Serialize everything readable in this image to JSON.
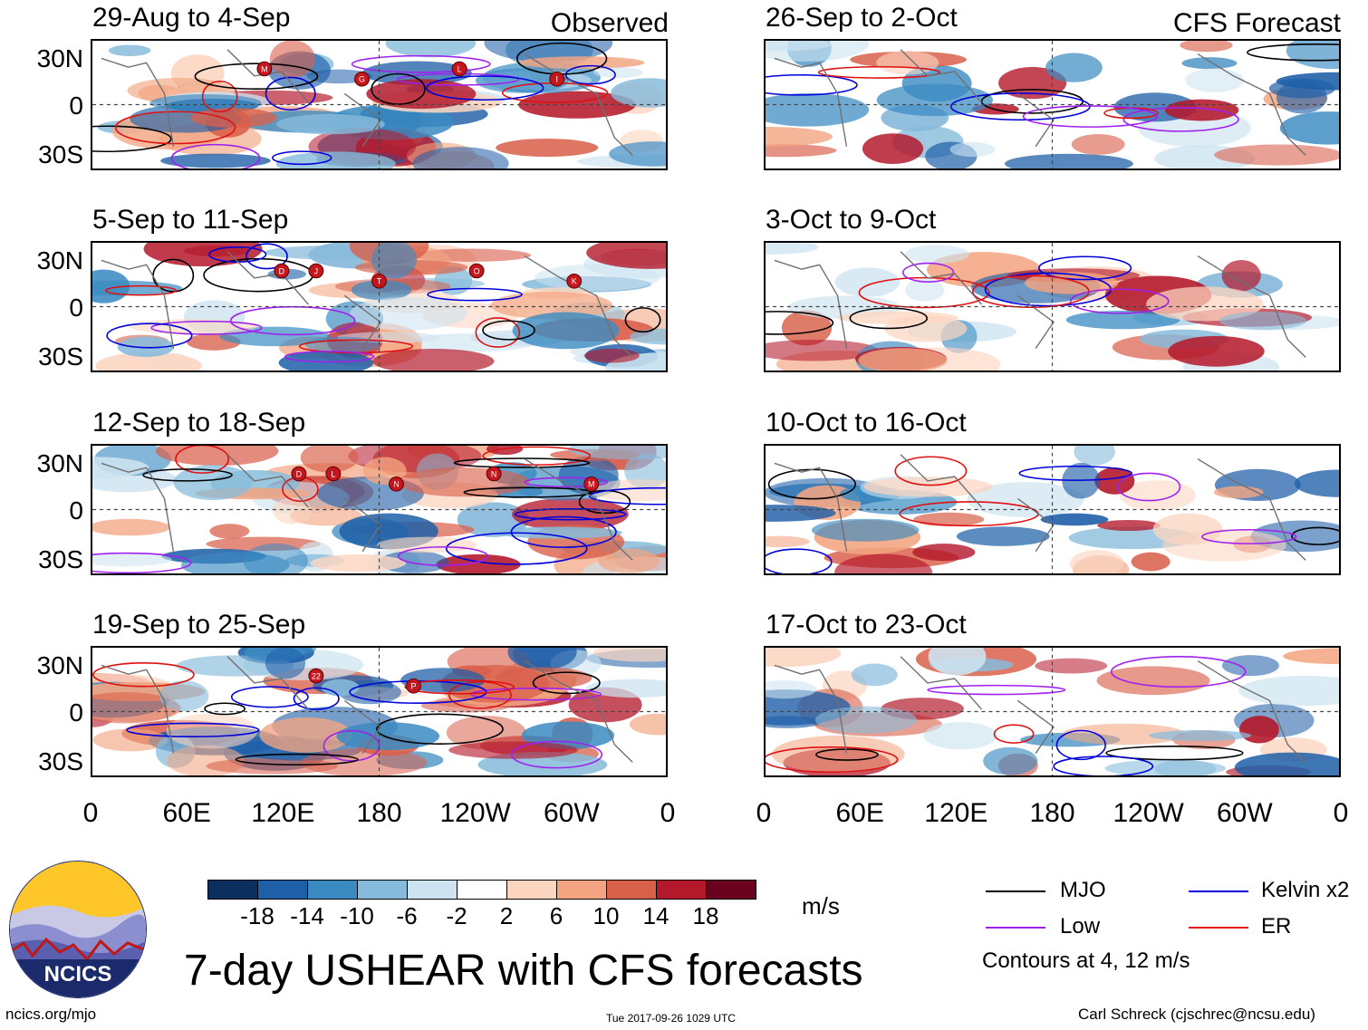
{
  "panels": [
    {
      "title": "29-Aug to 4-Sep",
      "label": "Observed",
      "column": "observed",
      "storms": [
        "M",
        "G",
        "L",
        "I"
      ]
    },
    {
      "title": "5-Sep to 11-Sep",
      "label": "",
      "column": "observed",
      "storms": [
        "D",
        "T",
        "O",
        "K",
        "J"
      ]
    },
    {
      "title": "12-Sep to 18-Sep",
      "label": "",
      "column": "observed",
      "storms": [
        "D",
        "N",
        "N",
        "M",
        "L"
      ]
    },
    {
      "title": "19-Sep to 25-Sep",
      "label": "",
      "column": "observed",
      "storms": [
        "22",
        "P"
      ]
    },
    {
      "title": "26-Sep to 2-Oct",
      "label": "CFS Forecast",
      "column": "forecast",
      "storms": []
    },
    {
      "title": "3-Oct to 9-Oct",
      "label": "",
      "column": "forecast",
      "storms": []
    },
    {
      "title": "10-Oct to 16-Oct",
      "label": "",
      "column": "forecast",
      "storms": []
    },
    {
      "title": "17-Oct to 23-Oct",
      "label": "",
      "column": "forecast",
      "storms": []
    }
  ],
  "lat_labels": [
    "30N",
    "0",
    "30S"
  ],
  "lon_labels": [
    "0",
    "60E",
    "120E",
    "180",
    "120W",
    "60W",
    "0"
  ],
  "colorbar": {
    "colors": [
      "#0b2f5e",
      "#1f5fa8",
      "#3b8bc2",
      "#86bbdb",
      "#cde3f0",
      "#ffffff",
      "#fcd5c0",
      "#f3a581",
      "#d9604b",
      "#b4182b",
      "#6a0320"
    ],
    "ticks": [
      "-18",
      "-14",
      "-10",
      "-6",
      "-2",
      "2",
      "6",
      "10",
      "14",
      "18"
    ],
    "unit": "m/s"
  },
  "legend": {
    "items": [
      {
        "label": "MJO",
        "color": "#000000"
      },
      {
        "label": "Kelvin x2",
        "color": "#0000dd"
      },
      {
        "label": "Low",
        "color": "#a020f0"
      },
      {
        "label": "ER",
        "color": "#e01010"
      }
    ],
    "note": "Contours at 4, 12 m/s"
  },
  "title": "7-day USHEAR with CFS forecasts",
  "logo_text": "NCICS",
  "footer": {
    "left": "ncics.org/mjo",
    "center": "Tue 2017-09-26 1029 UTC",
    "right": "Carl Schreck (cjschrec@ncsu.edu)"
  }
}
